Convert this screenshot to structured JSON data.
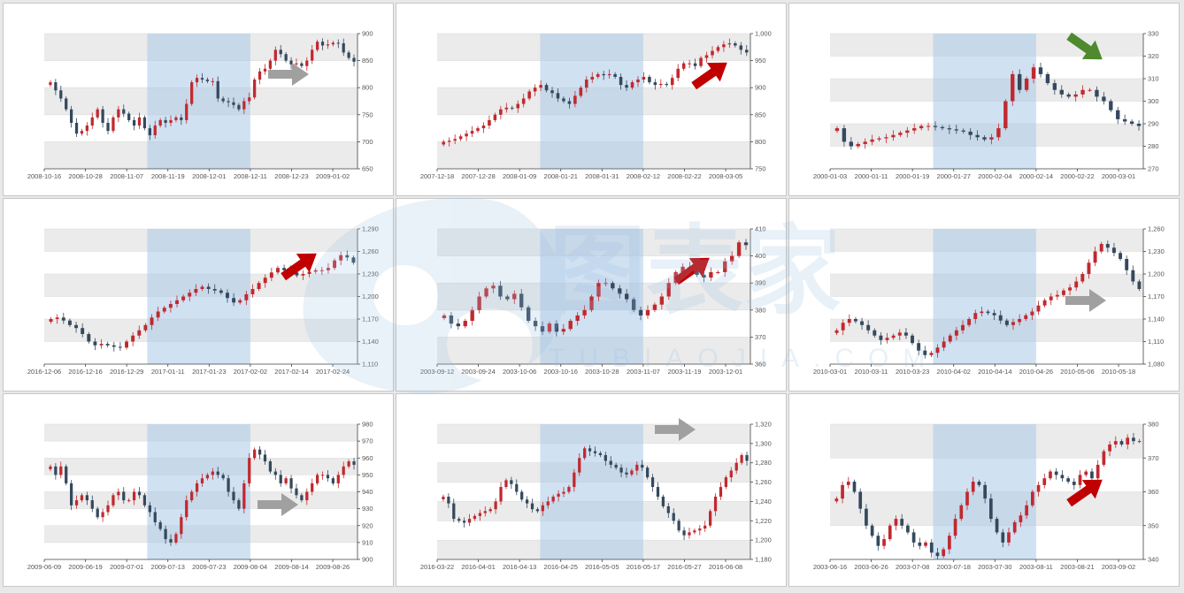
{
  "colors": {
    "up": "#c0292f",
    "down": "#34495e",
    "highlight": "#a9c9e8",
    "band": "#ebebeb",
    "arrow_gray": "#a0a0a0",
    "arrow_red": "#c00000",
    "arrow_green": "#4f8a2f",
    "watermark": "#9cc0e4"
  },
  "watermark": {
    "brand_text": "图表家",
    "domain_text": "TUBIAOJIA.COM"
  },
  "chart_data": [
    {
      "type": "candlestick",
      "ylim": [
        650,
        900
      ],
      "yticks": [
        650,
        700,
        750,
        800,
        850,
        900
      ],
      "xticks": [
        "2008-10-16",
        "2008-10-28",
        "2008-11-07",
        "2008-11-19",
        "2008-12-01",
        "2008-12-11",
        "2008-12-23",
        "2009-01-02"
      ],
      "highlight_tick_range": [
        2.5,
        5.0
      ],
      "arrow": {
        "direction": "right",
        "color": "gray"
      },
      "close": [
        810,
        795,
        780,
        760,
        735,
        715,
        720,
        730,
        745,
        760,
        735,
        720,
        745,
        760,
        752,
        740,
        730,
        745,
        725,
        712,
        730,
        740,
        735,
        740,
        745,
        740,
        770,
        810,
        818,
        815,
        812,
        812,
        780,
        775,
        773,
        768,
        760,
        775,
        782,
        815,
        830,
        835,
        850,
        870,
        862,
        850,
        843,
        845,
        840,
        850,
        870,
        885,
        878,
        880,
        883,
        882,
        865,
        855,
        848
      ]
    },
    {
      "type": "candlestick",
      "ylim": [
        750,
        1000
      ],
      "yticks": [
        750,
        800,
        850,
        900,
        950,
        1000
      ],
      "xticks": [
        "2007-12-18",
        "2007-12-28",
        "2008-01-09",
        "2008-01-21",
        "2008-01-31",
        "2008-02-12",
        "2008-02-22",
        "2008-03-05"
      ],
      "highlight_tick_range": [
        2.5,
        5.0
      ],
      "arrow": {
        "direction": "up-right",
        "color": "red"
      },
      "close": [
        800,
        802,
        805,
        810,
        815,
        820,
        825,
        830,
        840,
        850,
        860,
        863,
        862,
        870,
        880,
        893,
        900,
        905,
        895,
        890,
        880,
        875,
        870,
        885,
        900,
        915,
        920,
        925,
        923,
        925,
        920,
        905,
        900,
        910,
        915,
        920,
        910,
        905,
        907,
        905,
        918,
        935,
        945,
        945,
        940,
        955,
        960,
        968,
        975,
        980,
        982,
        978,
        970,
        965
      ]
    },
    {
      "type": "candlestick",
      "ylim": [
        270,
        330
      ],
      "yticks": [
        270,
        280,
        290,
        300,
        310,
        320,
        330
      ],
      "xticks": [
        "2000-01-03",
        "2000-01-11",
        "2000-01-19",
        "2000-01-27",
        "2000-02-04",
        "2000-02-14",
        "2000-02-22",
        "2000-03-01"
      ],
      "highlight_tick_range": [
        2.5,
        5.0
      ],
      "arrow": {
        "direction": "down-right",
        "color": "green"
      },
      "close": [
        288,
        282,
        280,
        281,
        282,
        283,
        283.5,
        284,
        285,
        286,
        287,
        288,
        289,
        289,
        288.5,
        288,
        287.5,
        287,
        286.5,
        285,
        284,
        283,
        284,
        288,
        300,
        312,
        305,
        310,
        315,
        312,
        308,
        305,
        303,
        302,
        303,
        305,
        305,
        302,
        300,
        296,
        292,
        291,
        290,
        289
      ]
    },
    {
      "type": "candlestick",
      "ylim": [
        1110,
        1290
      ],
      "yticks": [
        1110,
        1140,
        1170,
        1200,
        1230,
        1260,
        1290
      ],
      "xticks": [
        "2016-12-06",
        "2016-12-16",
        "2016-12-29",
        "2017-01-11",
        "2017-01-23",
        "2017-02-02",
        "2017-02-14",
        "2017-02-24"
      ],
      "highlight_tick_range": [
        2.5,
        5.0
      ],
      "arrow": {
        "direction": "up-right",
        "color": "red"
      },
      "close": [
        1170,
        1172,
        1168,
        1162,
        1158,
        1150,
        1140,
        1135,
        1137,
        1135,
        1133,
        1132,
        1140,
        1148,
        1155,
        1162,
        1172,
        1180,
        1185,
        1190,
        1195,
        1200,
        1205,
        1210,
        1213,
        1210,
        1208,
        1205,
        1198,
        1192,
        1195,
        1203,
        1210,
        1218,
        1225,
        1232,
        1238,
        1235,
        1232,
        1228,
        1230,
        1233,
        1235,
        1235,
        1238,
        1248,
        1255,
        1252,
        1245
      ]
    },
    {
      "type": "candlestick",
      "ylim": [
        360,
        410
      ],
      "yticks": [
        360,
        370,
        380,
        390,
        400,
        410
      ],
      "xticks": [
        "2003-09-12",
        "2003-09-24",
        "2003-10-06",
        "2003-10-16",
        "2003-10-28",
        "2003-11-07",
        "2003-11-19",
        "2003-12-01"
      ],
      "highlight_tick_range": [
        2.5,
        5.0
      ],
      "arrow": {
        "direction": "up-right",
        "color": "red"
      },
      "close": [
        378,
        375,
        374,
        376,
        380,
        385,
        388,
        389,
        385,
        384,
        386,
        381,
        376,
        374,
        372,
        375,
        372,
        373,
        376,
        378,
        380,
        385,
        390,
        390,
        388,
        386,
        384,
        380,
        378,
        380,
        382,
        385,
        390,
        394,
        396,
        395,
        393,
        392,
        394,
        394,
        398,
        400,
        405,
        404
      ]
    },
    {
      "type": "candlestick",
      "ylim": [
        1080,
        1260
      ],
      "yticks": [
        1080,
        1110,
        1140,
        1170,
        1200,
        1230,
        1260
      ],
      "xticks": [
        "2010-03-01",
        "2010-03-11",
        "2010-03-23",
        "2010-04-02",
        "2010-04-14",
        "2010-04-26",
        "2010-05-06",
        "2010-05-18"
      ],
      "highlight_tick_range": [
        2.5,
        5.0
      ],
      "arrow": {
        "direction": "right",
        "color": "gray"
      },
      "close": [
        1125,
        1135,
        1140,
        1137,
        1132,
        1125,
        1118,
        1112,
        1115,
        1118,
        1122,
        1118,
        1108,
        1098,
        1092,
        1095,
        1102,
        1110,
        1118,
        1125,
        1132,
        1140,
        1148,
        1150,
        1148,
        1145,
        1138,
        1132,
        1136,
        1140,
        1145,
        1150,
        1158,
        1165,
        1170,
        1172,
        1178,
        1182,
        1190,
        1200,
        1215,
        1230,
        1240,
        1235,
        1228,
        1220,
        1205,
        1190,
        1180
      ]
    },
    {
      "type": "candlestick",
      "ylim": [
        900,
        980
      ],
      "yticks": [
        900,
        910,
        920,
        930,
        940,
        950,
        960,
        970,
        980
      ],
      "xticks": [
        "2009-06-09",
        "2009-06-19",
        "2009-07-01",
        "2009-07-13",
        "2009-07-23",
        "2009-08-04",
        "2009-08-14",
        "2009-08-26"
      ],
      "highlight_tick_range": [
        2.5,
        5.0
      ],
      "arrow": {
        "direction": "right",
        "color": "gray"
      },
      "close": [
        955,
        950,
        955,
        945,
        932,
        935,
        938,
        935,
        930,
        925,
        928,
        932,
        938,
        940,
        935,
        935,
        940,
        938,
        932,
        928,
        922,
        918,
        912,
        910,
        915,
        925,
        935,
        940,
        945,
        948,
        950,
        952,
        950,
        948,
        940,
        935,
        930,
        945,
        960,
        965,
        962,
        958,
        952,
        950,
        945,
        948,
        942,
        938,
        935,
        940,
        945,
        950,
        950,
        948,
        945,
        950,
        955,
        958,
        956
      ]
    },
    {
      "type": "candlestick",
      "ylim": [
        1180,
        1320
      ],
      "yticks": [
        1180,
        1200,
        1220,
        1240,
        1260,
        1280,
        1300,
        1320
      ],
      "xticks": [
        "2016-03-22",
        "2016-04-01",
        "2016-04-13",
        "2016-04-25",
        "2016-05-05",
        "2016-05-17",
        "2016-05-27",
        "2016-06-08"
      ],
      "highlight_tick_range": [
        2.5,
        5.0
      ],
      "arrow": {
        "direction": "right",
        "color": "gray"
      },
      "close": [
        1245,
        1238,
        1222,
        1220,
        1218,
        1222,
        1225,
        1228,
        1230,
        1232,
        1240,
        1255,
        1262,
        1258,
        1250,
        1242,
        1238,
        1232,
        1230,
        1236,
        1240,
        1245,
        1248,
        1250,
        1255,
        1270,
        1285,
        1295,
        1292,
        1290,
        1288,
        1282,
        1278,
        1275,
        1270,
        1268,
        1272,
        1278,
        1275,
        1265,
        1255,
        1245,
        1235,
        1228,
        1220,
        1210,
        1205,
        1208,
        1210,
        1212,
        1215,
        1230,
        1245,
        1255,
        1265,
        1272,
        1280,
        1288,
        1282
      ]
    },
    {
      "type": "candlestick",
      "ylim": [
        340,
        380
      ],
      "yticks": [
        340,
        350,
        360,
        370,
        380
      ],
      "xticks": [
        "2003-06-16",
        "2003-06-26",
        "2003-07-08",
        "2003-07-18",
        "2003-07-30",
        "2003-08-11",
        "2003-08-21",
        "2003-09-02"
      ],
      "highlight_tick_range": [
        2.5,
        5.0
      ],
      "arrow": {
        "direction": "up-right",
        "color": "red"
      },
      "close": [
        358,
        362,
        363,
        360,
        355,
        350,
        347,
        344,
        346,
        350,
        352,
        350,
        348,
        345,
        344,
        345,
        342,
        341,
        343,
        347,
        352,
        356,
        360,
        363,
        362,
        358,
        352,
        348,
        345,
        348,
        351,
        353,
        356,
        360,
        362,
        364,
        366,
        365,
        364,
        363,
        362,
        365,
        366,
        364,
        368,
        372,
        374,
        375,
        374,
        376,
        375,
        375
      ]
    }
  ]
}
